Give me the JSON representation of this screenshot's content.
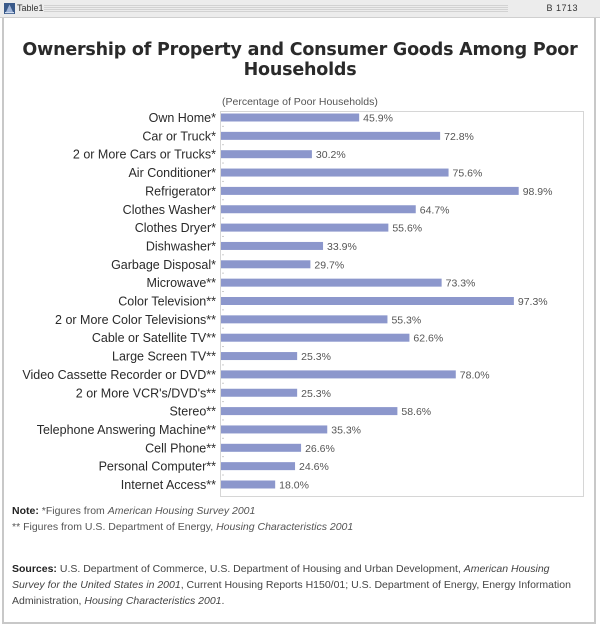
{
  "window": {
    "title": "Table1",
    "code": "B 1713",
    "icon": "bell-icon"
  },
  "page_title": "Ownership of Property and Consumer Goods Among Poor Households",
  "chart_data": {
    "type": "bar",
    "orientation": "horizontal",
    "title": "Ownership of Property and Consumer Goods Among Poor Households",
    "subtitle": "(Percentage of Poor Households)",
    "xlabel": "",
    "ylabel": "",
    "xlim": [
      0,
      100
    ],
    "grid": false,
    "legend": "none",
    "bar_color": "#8c97cc",
    "value_suffix": "%",
    "categories": [
      "Own Home*",
      "Car or Truck*",
      "2 or More Cars or Trucks*",
      "Air Conditioner*",
      "Refrigerator*",
      "Clothes Washer*",
      "Clothes Dryer*",
      "Dishwasher*",
      "Garbage Disposal*",
      "Microwave**",
      "Color Television**",
      "2 or More Color Televisions**",
      "Cable or Satellite TV**",
      "Large Screen TV**",
      "Video Cassette Recorder or DVD**",
      "2 or More VCR's/DVD's**",
      "Stereo**",
      "Telephone Answering Machine**",
      "Cell Phone**",
      "Personal Computer**",
      "Internet Access**"
    ],
    "values": [
      45.9,
      72.8,
      30.2,
      75.6,
      98.9,
      64.7,
      55.6,
      33.9,
      29.7,
      73.3,
      97.3,
      55.3,
      62.6,
      25.3,
      78.0,
      25.3,
      58.6,
      35.3,
      26.6,
      24.6,
      18.0
    ],
    "labels": [
      "45.9%",
      "72.8%",
      "30.2%",
      "75.6%",
      "98.9%",
      "64.7%",
      "55.6%",
      "33.9%",
      "29.7%",
      "73.3%",
      "97.3%",
      "55.3%",
      "62.6%",
      "25.3%",
      "78.0%",
      "25.3%",
      "58.6%",
      "35.3%",
      "26.6%",
      "24.6%",
      "18.0%"
    ]
  },
  "notes": {
    "label": "Note:",
    "line1_prefix": "*Figures from ",
    "line1_source": "American Housing Survey 2001",
    "line2_prefix": "** Figures from U.S. Department of Energy, ",
    "line2_source": "Housing Characteristics 2001"
  },
  "sources": {
    "label": "Sources:",
    "part1": "U.S. Department of Commerce, U.S. Department of Housing and Urban Development, ",
    "part2_italic": "American Housing Survey for the United States in 2001",
    "part3": ", Current Housing Reports H150/01; U.S. Department of Energy, Energy Information Administration, ",
    "part4_italic": "Housing Characteristics 2001",
    "part5": "."
  }
}
